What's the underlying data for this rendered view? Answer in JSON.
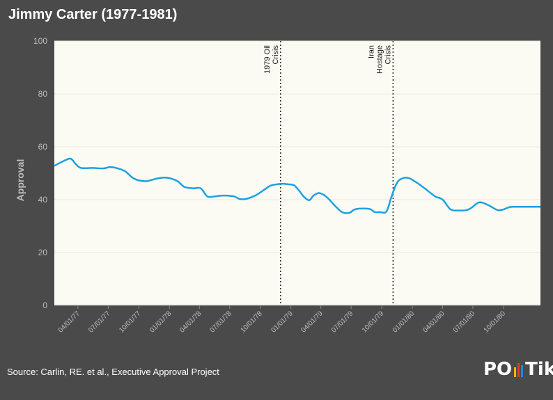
{
  "header": {
    "title": "Jimmy Carter (1977-1981)"
  },
  "footer": {
    "source": "Source: Carlin, RE. et al., Executive Approval Project",
    "logo_left": "PO",
    "logo_right": "Tik",
    "logo_bar_colors": [
      "#f5b700",
      "#e53935",
      "#1e88e5"
    ]
  },
  "colors": {
    "background": "#4a4a4a",
    "plot_bg": "#fbfbf3",
    "line": "#1ba1e2",
    "grid": "#e8e8e0",
    "axis_text": "#bdbdbd"
  },
  "chart_data": {
    "type": "line",
    "title": "Jimmy Carter (1977-1981)",
    "ylabel": "Approval",
    "xlabel": "",
    "ylim": [
      0,
      100
    ],
    "xlim": [
      "1977-01-20",
      "1981-01-20"
    ],
    "yticks": [
      0,
      20,
      40,
      60,
      80,
      100
    ],
    "xticks": [
      "04/01/77",
      "07/01/77",
      "10/01/77",
      "01/01/78",
      "04/01/78",
      "07/01/78",
      "10/01/78",
      "01/01/79",
      "04/01/79",
      "07/01/79",
      "10/01/79",
      "01/01/80",
      "04/01/80",
      "07/01/80",
      "10/01/80"
    ],
    "grid": true,
    "annotations": [
      {
        "date": "1978-12-01",
        "lines": [
          "1979 Oil",
          "Crisis"
        ]
      },
      {
        "date": "1979-11-04",
        "lines": [
          "Iran",
          "Hostage",
          "Crisis"
        ]
      }
    ],
    "series": [
      {
        "x": [
          "1977-01-20",
          "1977-02-15",
          "1977-03-10",
          "1977-03-25",
          "1977-04-10",
          "1977-05-15",
          "1977-06-15",
          "1977-07-05",
          "1977-07-25",
          "1977-08-20",
          "1977-09-10",
          "1977-09-30",
          "1977-10-25",
          "1977-11-25",
          "1977-12-25",
          "1978-01-25",
          "1978-02-15",
          "1978-03-15",
          "1978-04-05",
          "1978-04-25",
          "1978-05-15",
          "1978-06-05",
          "1978-06-25",
          "1978-07-15",
          "1978-08-01",
          "1978-08-20",
          "1978-09-15",
          "1978-10-10",
          "1978-11-01",
          "1978-11-25",
          "1978-12-10",
          "1978-12-25",
          "1979-01-10",
          "1979-01-25",
          "1979-02-10",
          "1979-02-25",
          "1979-03-10",
          "1979-03-25",
          "1979-04-10",
          "1979-04-25",
          "1979-05-15",
          "1979-06-05",
          "1979-06-25",
          "1979-07-10",
          "1979-07-25",
          "1979-08-25",
          "1979-09-10",
          "1979-09-25",
          "1979-10-15",
          "1979-10-30",
          "1979-11-15",
          "1979-12-01",
          "1979-12-20",
          "1980-01-10",
          "1980-01-25",
          "1980-02-15",
          "1980-03-10",
          "1980-04-01",
          "1980-04-25",
          "1980-05-20",
          "1980-06-10",
          "1980-06-25",
          "1980-07-20",
          "1980-08-15",
          "1980-09-01",
          "1980-09-15",
          "1980-10-01",
          "1980-10-20",
          "1980-11-10",
          "1980-12-01",
          "1980-12-25",
          "1981-01-20"
        ],
        "y": [
          52.8,
          54.5,
          55.5,
          53.5,
          52.0,
          52.0,
          51.8,
          52.3,
          52.0,
          50.8,
          48.5,
          47.3,
          47.0,
          48.0,
          48.3,
          47.0,
          44.8,
          44.3,
          44.3,
          41.2,
          41.2,
          41.5,
          41.5,
          41.2,
          40.2,
          40.3,
          41.5,
          43.5,
          45.3,
          45.9,
          46.0,
          45.8,
          45.5,
          43.5,
          41.0,
          39.8,
          41.5,
          42.5,
          41.8,
          40.2,
          37.5,
          35.2,
          35.0,
          36.2,
          36.6,
          36.5,
          35.3,
          35.3,
          35.5,
          41.0,
          46.2,
          48.0,
          48.2,
          46.8,
          45.5,
          43.5,
          41.2,
          40.0,
          36.3,
          35.9,
          36.0,
          36.8,
          39.0,
          38.0,
          36.8,
          36.0,
          36.3,
          37.2,
          37.3,
          37.3,
          37.3,
          37.3
        ]
      }
    ]
  }
}
